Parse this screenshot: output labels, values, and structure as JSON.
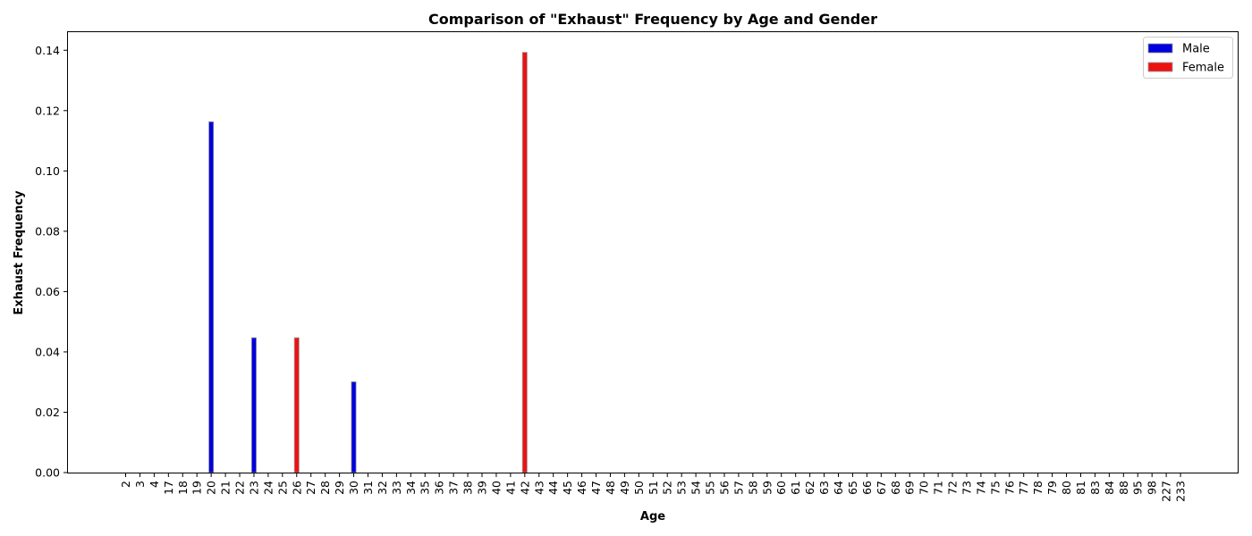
{
  "chart_data": {
    "type": "bar",
    "title": "Comparison of \"Exhaust\" Frequency by Age and Gender",
    "xlabel": "Age",
    "ylabel": "Exhaust Frequency",
    "ylim": [
      0,
      0.146
    ],
    "yticks": [
      0.0,
      0.02,
      0.04,
      0.06,
      0.08,
      0.1,
      0.12,
      0.14
    ],
    "ytick_labels": [
      "0.00",
      "0.02",
      "0.04",
      "0.06",
      "0.08",
      "0.10",
      "0.12",
      "0.14"
    ],
    "grid": false,
    "legend_position": "top-right",
    "categories": [
      "2",
      "3",
      "4",
      "17",
      "18",
      "19",
      "20",
      "21",
      "22",
      "23",
      "24",
      "25",
      "26",
      "27",
      "28",
      "29",
      "30",
      "31",
      "32",
      "33",
      "34",
      "35",
      "36",
      "37",
      "38",
      "39",
      "40",
      "41",
      "42",
      "43",
      "44",
      "45",
      "46",
      "47",
      "48",
      "49",
      "50",
      "51",
      "52",
      "53",
      "54",
      "55",
      "56",
      "57",
      "58",
      "59",
      "60",
      "61",
      "62",
      "63",
      "64",
      "65",
      "66",
      "67",
      "68",
      "69",
      "70",
      "71",
      "72",
      "73",
      "74",
      "75",
      "76",
      "77",
      "78",
      "79",
      "80",
      "81",
      "83",
      "84",
      "88",
      "95",
      "98",
      "227",
      "233"
    ],
    "series": [
      {
        "name": "Male",
        "color": "#0000dd",
        "values": [
          0,
          0,
          0,
          0,
          0,
          0,
          0.1163,
          0,
          0,
          0.0447,
          0,
          0,
          0,
          0,
          0,
          0,
          0.0301,
          0,
          0,
          0,
          0,
          0,
          0,
          0,
          0,
          0,
          0,
          0,
          0,
          0,
          0,
          0,
          0,
          0,
          0,
          0,
          0,
          0,
          0,
          0,
          0,
          0,
          0,
          0,
          0,
          0,
          0,
          0,
          0,
          0,
          0,
          0,
          0,
          0,
          0,
          0,
          0,
          0,
          0,
          0,
          0,
          0,
          0,
          0,
          0,
          0,
          0,
          0,
          0,
          0,
          0,
          0,
          0,
          0,
          0
        ]
      },
      {
        "name": "Female",
        "color": "#ee1111",
        "values": [
          0,
          0,
          0,
          0,
          0,
          0,
          0,
          0,
          0,
          0,
          0,
          0,
          0.0447,
          0,
          0,
          0,
          0,
          0,
          0,
          0,
          0,
          0,
          0,
          0,
          0,
          0,
          0,
          0,
          0.1393,
          0,
          0,
          0,
          0,
          0,
          0,
          0,
          0,
          0,
          0,
          0,
          0,
          0,
          0,
          0,
          0,
          0,
          0,
          0,
          0,
          0,
          0,
          0,
          0,
          0,
          0,
          0,
          0,
          0,
          0,
          0,
          0,
          0,
          0,
          0,
          0,
          0,
          0,
          0,
          0,
          0,
          0,
          0,
          0,
          0,
          0
        ]
      }
    ]
  }
}
